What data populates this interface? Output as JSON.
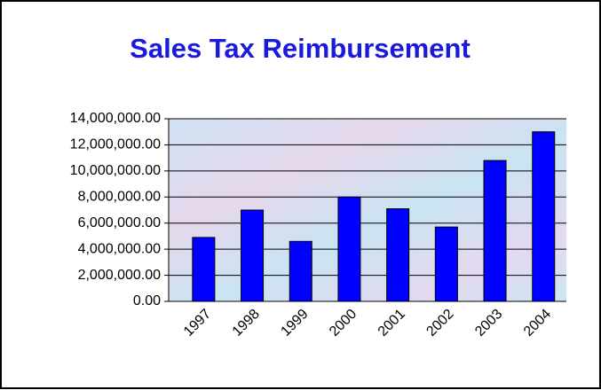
{
  "chart_data": {
    "type": "bar",
    "title": "Sales Tax Reimbursement",
    "categories": [
      "1997",
      "1998",
      "1999",
      "2000",
      "2001",
      "2002",
      "2003",
      "2004"
    ],
    "values": [
      4900000,
      7000000,
      4600000,
      8000000,
      7100000,
      5700000,
      10800000,
      13000000
    ],
    "color": "#0000ff",
    "ylim": [
      0,
      14000000
    ],
    "yticks": [
      {
        "value": 0,
        "label": "0.00"
      },
      {
        "value": 2000000,
        "label": "2,000,000.00"
      },
      {
        "value": 4000000,
        "label": "4,000,000.00"
      },
      {
        "value": 6000000,
        "label": "6,000,000.00"
      },
      {
        "value": 8000000,
        "label": "8,000,000.00"
      },
      {
        "value": 10000000,
        "label": "10,000,000.00"
      },
      {
        "value": 12000000,
        "label": "12,000,000.00"
      },
      {
        "value": 14000000,
        "label": "14,000,000.00"
      }
    ],
    "grid": true
  }
}
